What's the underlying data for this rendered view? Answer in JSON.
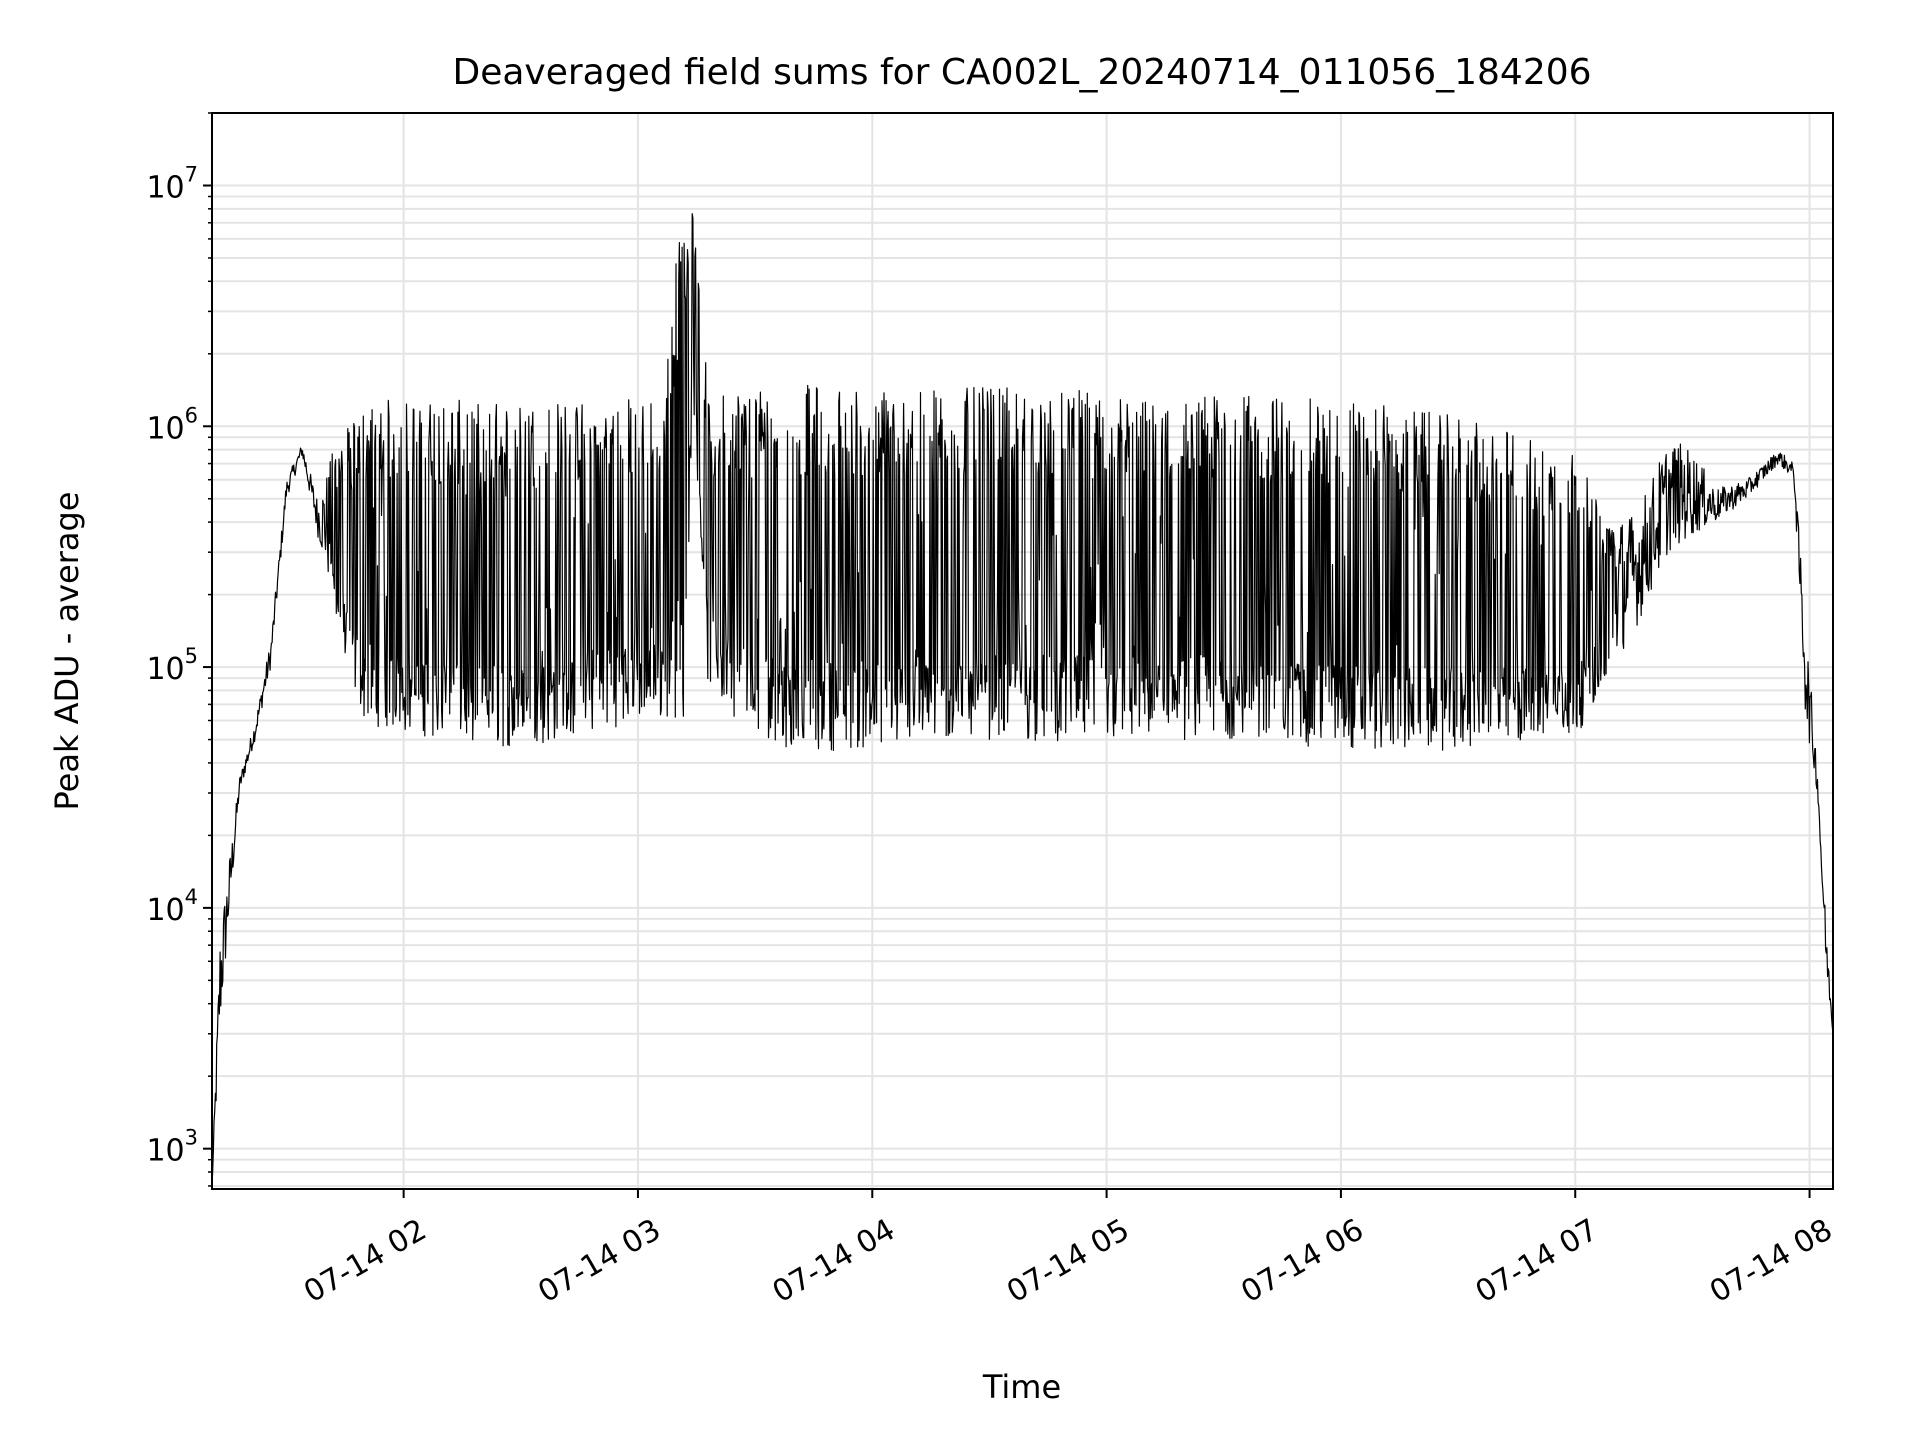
{
  "chart_data": {
    "type": "line",
    "title": "Deaveraged field sums for CA002L_20240714_011056_184206",
    "xlabel": "Time",
    "ylabel": "Peak ADU - average",
    "yscale": "log",
    "ylim": [
      680,
      20000000
    ],
    "xlim": [
      "2024-07-14 01:10:56",
      "2024-07-14 08:06:00"
    ],
    "grid": true,
    "line_color": "#000000",
    "x_ticks": [
      {
        "label": "07-14 02",
        "t": "2024-07-14 02:00"
      },
      {
        "label": "07-14 03",
        "t": "2024-07-14 03:00"
      },
      {
        "label": "07-14 04",
        "t": "2024-07-14 04:00"
      },
      {
        "label": "07-14 05",
        "t": "2024-07-14 05:00"
      },
      {
        "label": "07-14 06",
        "t": "2024-07-14 06:00"
      },
      {
        "label": "07-14 07",
        "t": "2024-07-14 07:00"
      },
      {
        "label": "07-14 08",
        "t": "2024-07-14 08:00"
      }
    ],
    "y_ticks": [
      {
        "base": "10",
        "exp": "3",
        "value": 1000
      },
      {
        "base": "10",
        "exp": "4",
        "value": 10000
      },
      {
        "base": "10",
        "exp": "5",
        "value": 100000
      },
      {
        "base": "10",
        "exp": "6",
        "value": 1000000
      },
      {
        "base": "10",
        "exp": "7",
        "value": 10000000
      }
    ],
    "series": [
      {
        "envelope": {
          "t": [
            "2024-07-14 01:10:56",
            "2024-07-14 01:13",
            "2024-07-14 01:18",
            "2024-07-14 01:22",
            "2024-07-14 01:26",
            "2024-07-14 01:30",
            "2024-07-14 01:34",
            "2024-07-14 01:38",
            "2024-07-14 01:42",
            "2024-07-14 01:46",
            "2024-07-14 01:50",
            "2024-07-14 01:55",
            "2024-07-14 02:10",
            "2024-07-14 02:30",
            "2024-07-14 02:50",
            "2024-07-14 03:05",
            "2024-07-14 03:12",
            "2024-07-14 03:14",
            "2024-07-14 03:18",
            "2024-07-14 03:28",
            "2024-07-14 03:40",
            "2024-07-14 04:00",
            "2024-07-14 04:30",
            "2024-07-14 05:00",
            "2024-07-14 05:30",
            "2024-07-14 06:00",
            "2024-07-14 06:30",
            "2024-07-14 07:00",
            "2024-07-14 07:08",
            "2024-07-14 07:16",
            "2024-07-14 07:24",
            "2024-07-14 07:30",
            "2024-07-14 07:36",
            "2024-07-14 07:44",
            "2024-07-14 07:52",
            "2024-07-14 07:56",
            "2024-07-14 07:59",
            "2024-07-14 08:02",
            "2024-07-14 08:04",
            "2024-07-14 08:06"
          ],
          "high": [
            700,
            8000,
            35000,
            60000,
            130000,
            600000,
            850000,
            500000,
            800000,
            1000000,
            1200000,
            1300000,
            1300000,
            1250000,
            1300000,
            1350000,
            9000000,
            12000000,
            1300000,
            1500000,
            1500000,
            1450000,
            1450000,
            1400000,
            1350000,
            1300000,
            1100000,
            800000,
            400000,
            450000,
            900000,
            800000,
            550000,
            600000,
            800000,
            700000,
            150000,
            40000,
            10000,
            3000
          ],
          "low": [
            700,
            3000,
            30000,
            50000,
            100000,
            500000,
            750000,
            350000,
            180000,
            90000,
            60000,
            55000,
            50000,
            45000,
            55000,
            60000,
            60000,
            1500000,
            80000,
            55000,
            45000,
            45000,
            50000,
            48000,
            50000,
            45000,
            45000,
            50000,
            90000,
            150000,
            300000,
            350000,
            400000,
            500000,
            700000,
            600000,
            60000,
            30000,
            6000,
            3000
          ]
        }
      }
    ]
  }
}
